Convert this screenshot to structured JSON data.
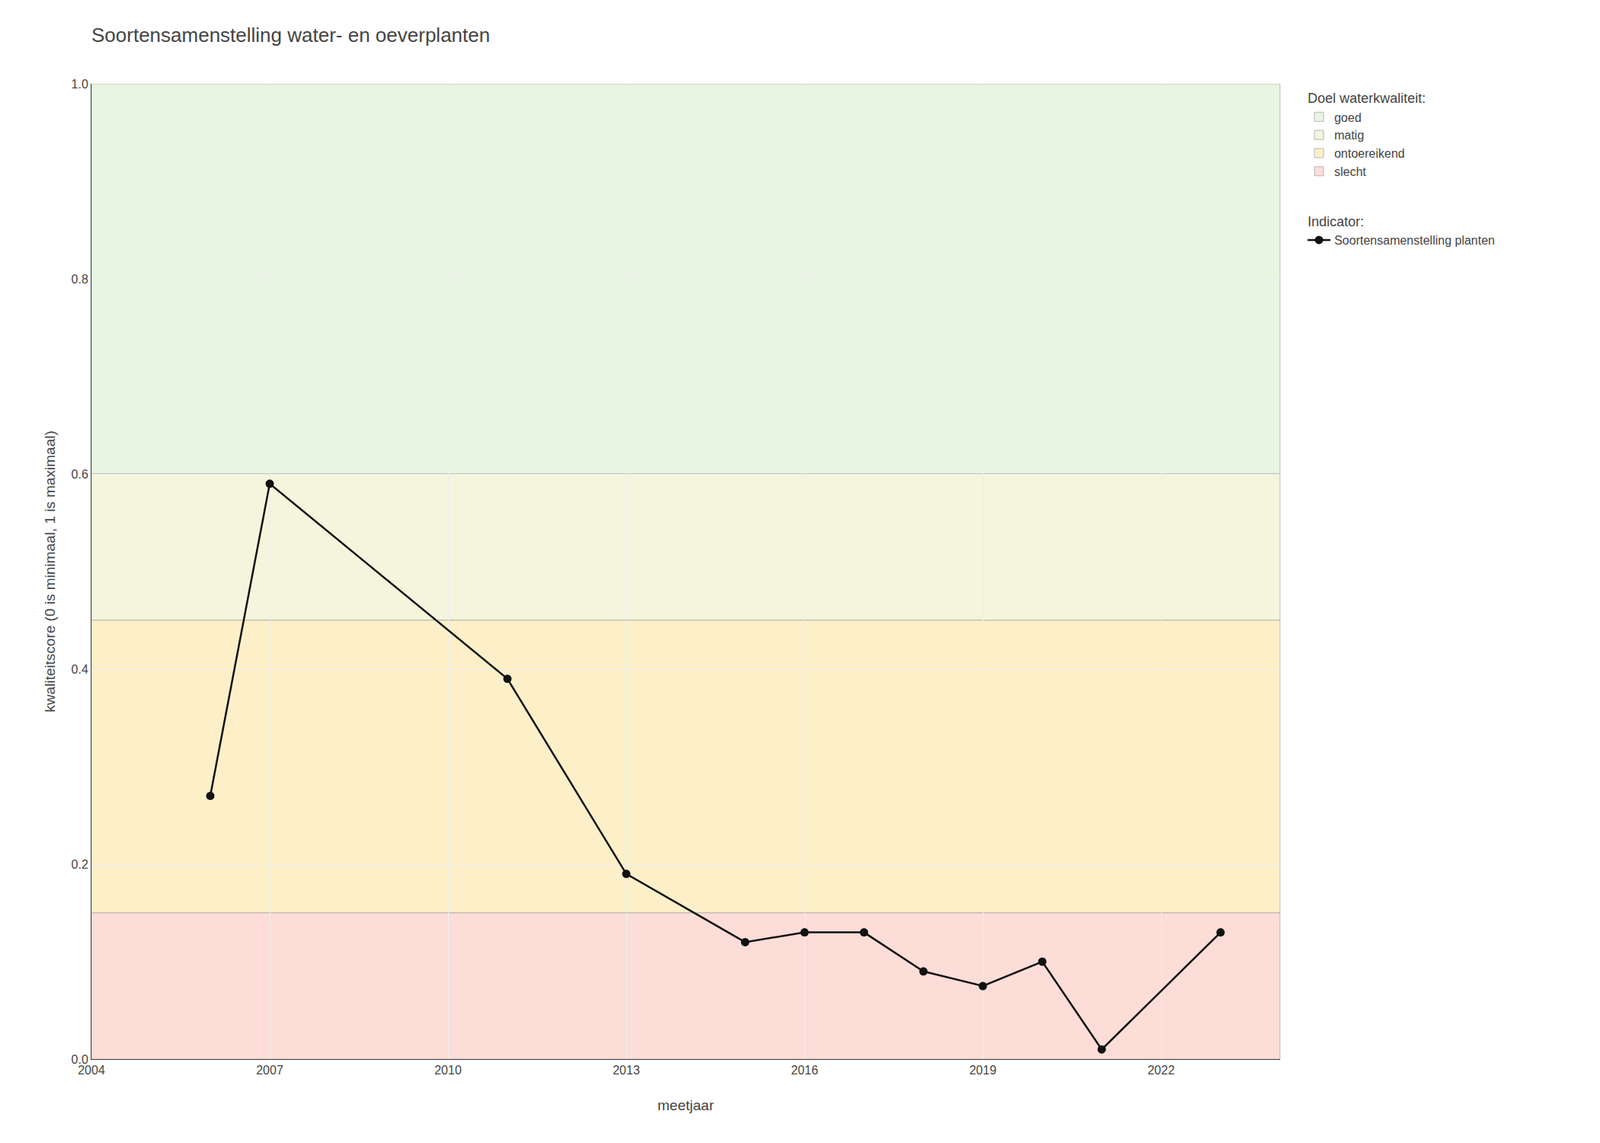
{
  "chart_data": {
    "type": "line",
    "title": "Soortensamenstelling water- en oeverplanten",
    "xlabel": "meetjaar",
    "ylabel": "kwaliteitscore (0 is minimaal, 1 is maximaal)",
    "x": [
      2006,
      2007,
      2011,
      2013,
      2015,
      2016,
      2017,
      2018,
      2019,
      2020,
      2021,
      2023
    ],
    "series": [
      {
        "name": "Soortensamenstelling planten",
        "legend_title": "Indicator:",
        "color": "#111111",
        "marker": "circle",
        "values": [
          0.27,
          0.59,
          0.39,
          0.19,
          0.12,
          0.13,
          0.13,
          0.09,
          0.075,
          0.1,
          0.01,
          0.13
        ]
      }
    ],
    "bands_title": "Doel waterkwaliteit:",
    "bands": [
      {
        "name": "goed",
        "range": [
          0.6,
          1.0
        ],
        "color": "#e8f5e2"
      },
      {
        "name": "matig",
        "range": [
          0.45,
          0.6
        ],
        "color": "#f5f5dd"
      },
      {
        "name": "ontoereikend",
        "range": [
          0.15,
          0.45
        ],
        "color": "#fdf0c8"
      },
      {
        "name": "slecht",
        "range": [
          0.0,
          0.15
        ],
        "color": "#fdddd8"
      }
    ],
    "xlim": [
      2004,
      2024
    ],
    "ylim": [
      0.0,
      1.0
    ],
    "xticks": [
      2004,
      2007,
      2010,
      2013,
      2016,
      2019,
      2022
    ],
    "yticks": [
      {
        "value": 0.0,
        "label": "0.0"
      },
      0.2,
      0.4,
      0.6,
      0.8,
      {
        "value": 1.0,
        "label": "1.0"
      }
    ],
    "grid": true,
    "legend": "right"
  }
}
